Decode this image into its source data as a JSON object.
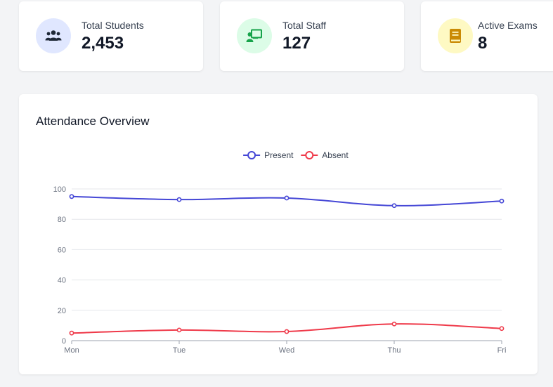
{
  "stats": [
    {
      "label": "Total Students",
      "value": "2,453",
      "icon": "users-icon",
      "icon_bg": "#e0e7ff",
      "icon_color": "#1f2937"
    },
    {
      "label": "Total Staff",
      "value": "127",
      "icon": "chalkboard-teacher-icon",
      "icon_bg": "#dcfce7",
      "icon_color": "#16a34a"
    },
    {
      "label": "Active Exams",
      "value": "8",
      "icon": "book-icon",
      "icon_bg": "#fef9c3",
      "icon_color": "#ca8a04"
    }
  ],
  "chart_title": "Attendance Overview",
  "chart_data": {
    "type": "line",
    "categories": [
      "Mon",
      "Tue",
      "Wed",
      "Thu",
      "Fri"
    ],
    "series": [
      {
        "name": "Present",
        "values": [
          95,
          93,
          94,
          89,
          92
        ],
        "color": "#4547d6"
      },
      {
        "name": "Absent",
        "values": [
          5,
          7,
          6,
          11,
          8
        ],
        "color": "#ef3a4a"
      }
    ],
    "ylim": [
      0,
      100
    ],
    "yticks": [
      0,
      20,
      40,
      60,
      80,
      100
    ],
    "grid": true,
    "legend_position": "top-center"
  }
}
